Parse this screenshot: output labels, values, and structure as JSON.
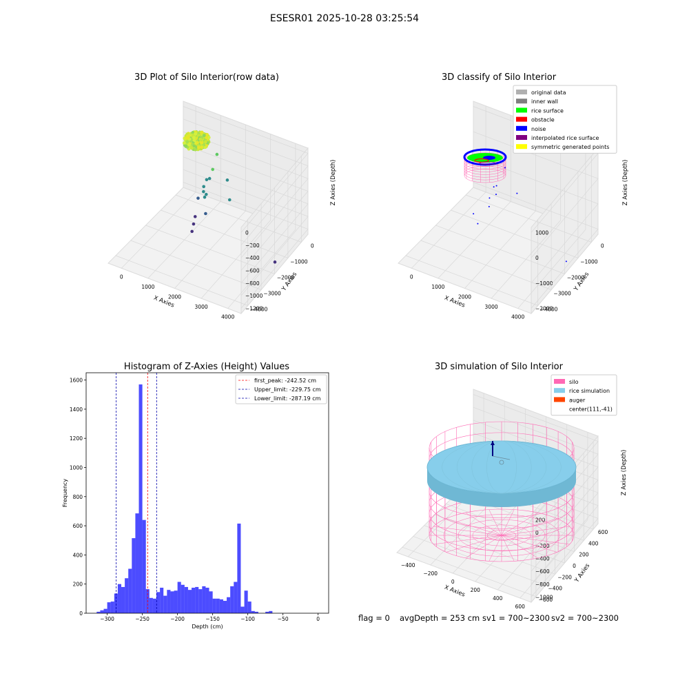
{
  "figure": {
    "suptitle": "ESESR01 2025-10-28 03:25:54",
    "footer": {
      "flag": "flag = 0",
      "avg_depth": "avgDepth = 253 cm",
      "sv1": "sv1 = 700~2300",
      "sv2": "sv2 = 700~2300"
    }
  },
  "colors": {
    "hist_bar": "#0000ff",
    "peak_line": "#ff0000",
    "limit_line": "#0000aa",
    "pane": "#f2f2f2",
    "grid": "#d8d8d8",
    "silo": "#ff69b4",
    "rice": "#87ceeb",
    "auger": "#ff4500",
    "rice_surface": "#00ff00",
    "noise": "#0000ff",
    "obstacle": "#ff0000",
    "inner_wall": "#808080",
    "original_data": "#b0b0b0",
    "interpolated": "#800080",
    "symmetric": "#ffff00"
  },
  "chart_data": [
    {
      "type": "scatter",
      "title": "3D Plot of Silo Interior(row data)",
      "xlabel": "X Axies",
      "ylabel": "Y Axies",
      "zlabel": "Z Axies (Depth)",
      "xlim": [
        -700,
        4000
      ],
      "ylim": [
        -4000,
        600
      ],
      "zlim": [
        -1400,
        100
      ],
      "x_ticks": [
        "0",
        "1000",
        "2000",
        "3000",
        "4000"
      ],
      "y_ticks": [
        "−4000",
        "−3000",
        "−2000",
        "−1000",
        "0"
      ],
      "z_ticks": [
        "0",
        "−200",
        "−400",
        "−600",
        "−800",
        "−1000",
        "−1200"
      ],
      "cluster": {
        "x_range": [
          -200,
          600
        ],
        "y_range": [
          -500,
          400
        ],
        "z": -240
      },
      "points": [
        {
          "x": 1100,
          "y": -300,
          "z": -250
        },
        {
          "x": 1000,
          "y": -400,
          "z": -500
        },
        {
          "x": 1000,
          "y": -600,
          "z": -600
        },
        {
          "x": 950,
          "y": -700,
          "z": -600
        },
        {
          "x": 900,
          "y": -800,
          "z": -700
        },
        {
          "x": 950,
          "y": -900,
          "z": -750
        },
        {
          "x": 1050,
          "y": -900,
          "z": -780
        },
        {
          "x": 1050,
          "y": -1000,
          "z": -800
        },
        {
          "x": 750,
          "y": -900,
          "z": -900
        },
        {
          "x": 1600,
          "y": -500,
          "z": -550
        },
        {
          "x": 1800,
          "y": -700,
          "z": -800
        },
        {
          "x": 1200,
          "y": -1200,
          "z": -1000
        },
        {
          "x": 700,
          "y": -1000,
          "z": -1200
        },
        {
          "x": 700,
          "y": -1100,
          "z": -1300
        },
        {
          "x": 700,
          "y": -1200,
          "z": -1400
        },
        {
          "x": 3800,
          "y": -1300,
          "z": -1350
        }
      ]
    },
    {
      "type": "scatter",
      "title": "3D classify of Silo Interior",
      "xlabel": "X Axies",
      "ylabel": "Y Axies",
      "zlabel": "Z Axies (Depth)",
      "xlim": [
        -700,
        4000
      ],
      "ylim": [
        -4000,
        600
      ],
      "zlim": [
        -2700,
        1400
      ],
      "x_ticks": [
        "0",
        "1000",
        "2000",
        "3000",
        "4000"
      ],
      "y_ticks": [
        "−4000",
        "−3000",
        "−2000",
        "−1000",
        "0"
      ],
      "z_ticks": [
        "1000",
        "0",
        "−1000",
        "−2000"
      ],
      "legend": {
        "placement": "top-right",
        "entries": [
          {
            "label": "original data",
            "color": "#b0b0b0"
          },
          {
            "label": "inner wall",
            "color": "#808080"
          },
          {
            "label": "rice surface",
            "color": "#00ff00"
          },
          {
            "label": "obstacle",
            "color": "#ff0000"
          },
          {
            "label": "noise",
            "color": "#0000ff"
          },
          {
            "label": "interpolated rice surface",
            "color": "#800080"
          },
          {
            "label": "symmetric generated points",
            "color": "#ffff00"
          }
        ]
      },
      "noise_points": [
        {
          "x": 1200,
          "y": -600,
          "z": 100
        },
        {
          "x": 1000,
          "y": -800,
          "z": -700
        },
        {
          "x": 900,
          "y": -800,
          "z": -800
        },
        {
          "x": 1100,
          "y": -1000,
          "z": -900
        },
        {
          "x": 800,
          "y": -900,
          "z": -1300
        },
        {
          "x": 900,
          "y": -1100,
          "z": -1500
        },
        {
          "x": 500,
          "y": -1400,
          "z": -1800
        },
        {
          "x": 1700,
          "y": -700,
          "z": -800
        },
        {
          "x": 600,
          "y": -1300,
          "z": -2300
        },
        {
          "x": 3900,
          "y": -1400,
          "z": -2400
        }
      ]
    },
    {
      "type": "bar",
      "title": "Histogram of Z-Axies (Height) Values",
      "xlabel": "Depth (cm)",
      "ylabel": "Frequency",
      "xlim": [
        -330,
        15
      ],
      "ylim": [
        0,
        1650
      ],
      "x_ticks": [
        -300,
        -250,
        -200,
        -150,
        -100,
        -50,
        0
      ],
      "y_ticks": [
        0,
        200,
        400,
        600,
        800,
        1000,
        1200,
        1400,
        1600
      ],
      "bin_start": -315,
      "bin_width": 5,
      "values": [
        10,
        20,
        30,
        75,
        80,
        135,
        200,
        180,
        240,
        305,
        515,
        685,
        1570,
        640,
        165,
        105,
        100,
        145,
        175,
        120,
        160,
        150,
        155,
        215,
        195,
        180,
        160,
        175,
        180,
        165,
        185,
        175,
        150,
        100,
        100,
        95,
        85,
        110,
        185,
        215,
        615,
        45,
        155,
        80,
        15,
        10,
        0,
        0,
        10,
        15
      ],
      "lines": [
        {
          "label": "first_peak: -242.52 cm",
          "x": -242.52,
          "color": "#ff0000"
        },
        {
          "label": "Upper_limit: -229.75 cm",
          "x": -229.75,
          "color": "#0000aa"
        },
        {
          "label": "Lower_limit: -287.19 cm",
          "x": -287.19,
          "color": "#0000aa"
        }
      ],
      "legend": {
        "placement": "top-right"
      }
    },
    {
      "type": "scatter",
      "title": "3D simulation of Silo Interior",
      "xlabel": "X Axies",
      "ylabel": "Y Axies",
      "zlabel": "Z Axies (Depth)",
      "xlim": [
        -550,
        750
      ],
      "ylim": [
        -750,
        650
      ],
      "zlim": [
        -1100,
        300
      ],
      "x_ticks": [
        "−400",
        "−200",
        "0",
        "200",
        "400",
        "600"
      ],
      "y_ticks": [
        "−600",
        "−400",
        "−200",
        "0",
        "200",
        "400",
        "600"
      ],
      "z_ticks": [
        "200",
        "0",
        "−200",
        "−400",
        "−600",
        "−800",
        "−1000"
      ],
      "silo": {
        "center": [
          111,
          -41
        ],
        "radius": 600,
        "z_bottom": -1000,
        "z_top": 0
      },
      "rice_surface_z": -240,
      "auger": {
        "x": 111,
        "y": -41,
        "z_top": 80
      },
      "legend": {
        "placement": "top-right",
        "entries": [
          {
            "label": "silo",
            "color": "#ff69b4"
          },
          {
            "label": "rice simulation",
            "color": "#87ceeb"
          },
          {
            "label": "auger",
            "color": "#ff4500"
          },
          {
            "label": "center(111,-41)",
            "color": ""
          }
        ]
      }
    }
  ]
}
